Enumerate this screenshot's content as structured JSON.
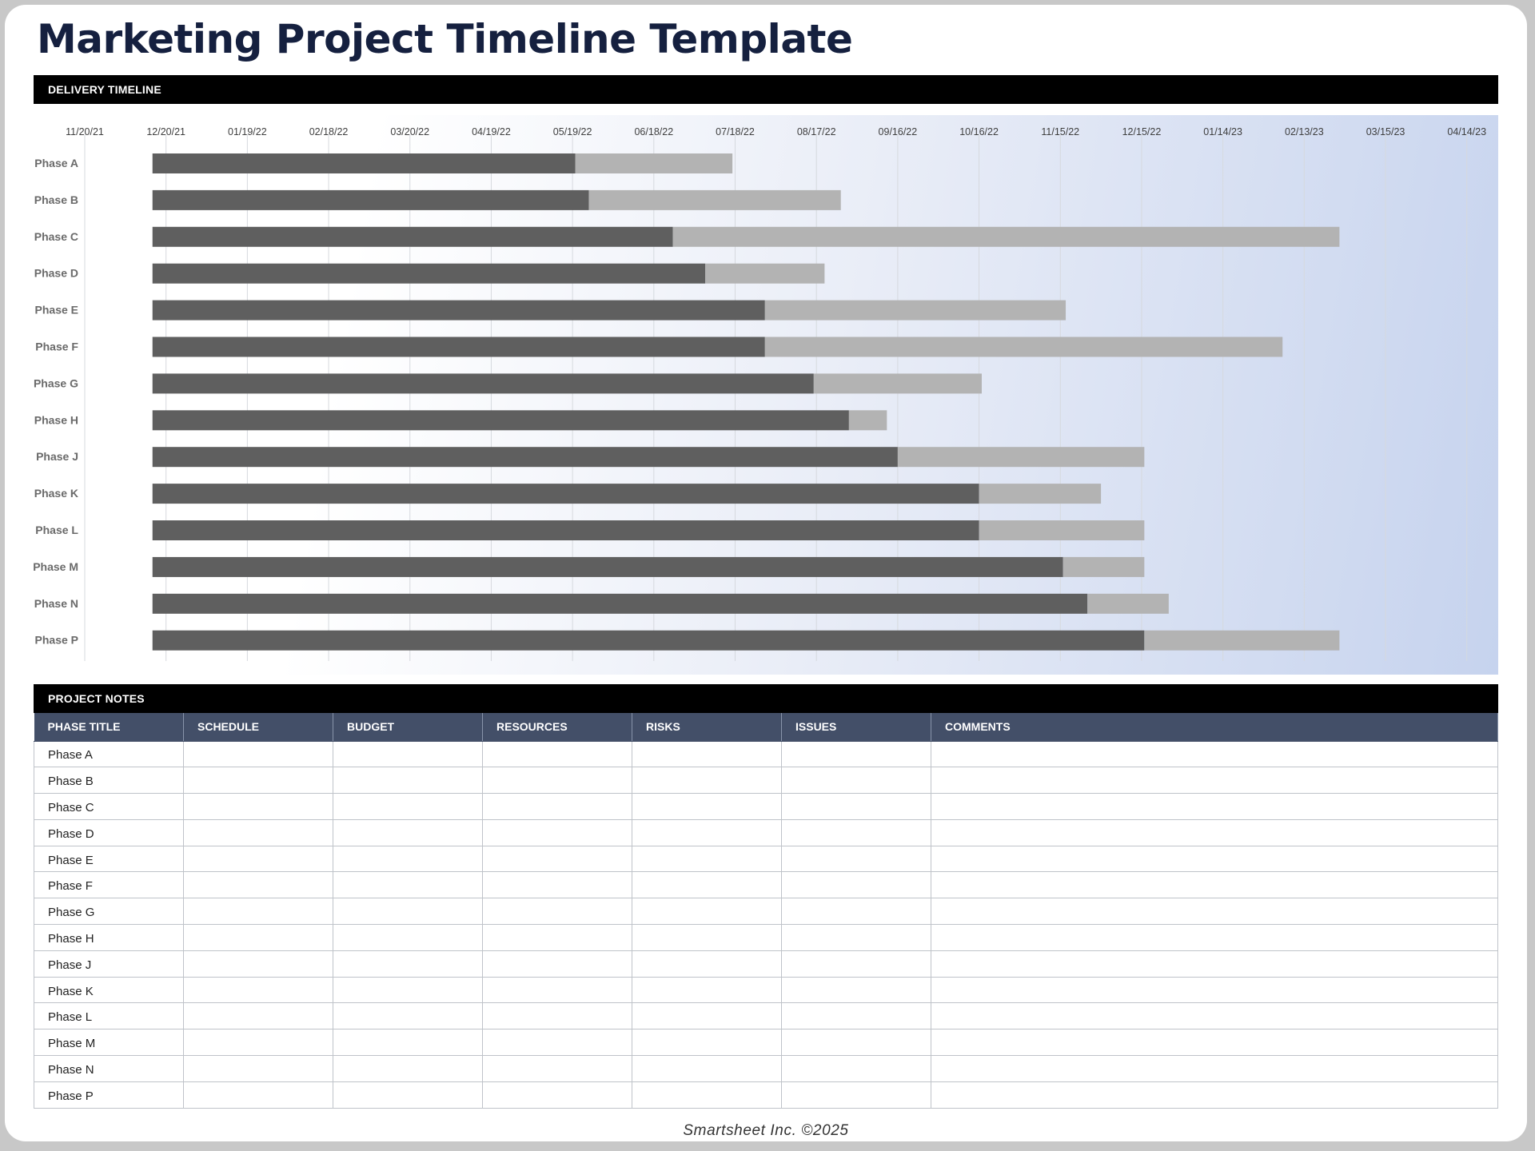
{
  "title": "Marketing Project Timeline Template",
  "timeline_section_label": "DELIVERY TIMELINE",
  "notes_section_label": "PROJECT NOTES",
  "colors": {
    "completed": "#5f5f5f",
    "remaining": "#b3b3b3",
    "section_header_bg": "#000000",
    "table_header_bg": "#434f68"
  },
  "chart_data": {
    "type": "bar",
    "orientation": "horizontal",
    "stacked": true,
    "x_ticks": [
      "11/20/21",
      "12/20/21",
      "01/19/22",
      "02/18/22",
      "03/20/22",
      "04/19/22",
      "05/19/22",
      "06/18/22",
      "07/18/22",
      "08/17/22",
      "09/16/22",
      "10/16/22",
      "11/15/22",
      "12/15/22",
      "01/14/23",
      "02/13/23",
      "03/15/23",
      "04/14/23"
    ],
    "xlim": [
      "11/20/21",
      "04/25/23"
    ],
    "grid": true,
    "legend": "none",
    "categories": [
      "Phase A",
      "Phase B",
      "Phase C",
      "Phase D",
      "Phase E",
      "Phase F",
      "Phase G",
      "Phase H",
      "Phase J",
      "Phase K",
      "Phase L",
      "Phase M",
      "Phase N",
      "Phase P"
    ],
    "series": [
      {
        "role": "offset",
        "values": [
          "12/15/21",
          "12/15/21",
          "12/15/21",
          "12/15/21",
          "12/15/21",
          "12/15/21",
          "12/15/21",
          "12/15/21",
          "12/15/21",
          "12/15/21",
          "12/15/21",
          "12/15/21",
          "12/15/21",
          "12/15/21"
        ]
      },
      {
        "role": "completed",
        "values": [
          "05/20/22",
          "05/25/22",
          "06/25/22",
          "07/07/22",
          "07/29/22",
          "07/29/22",
          "08/16/22",
          "08/29/22",
          "09/16/22",
          "10/16/22",
          "10/16/22",
          "11/16/22",
          "11/25/22",
          "12/16/22"
        ]
      },
      {
        "role": "remaining",
        "values": [
          "07/17/22",
          "08/26/22",
          "02/26/23",
          "08/20/22",
          "11/17/22",
          "02/05/23",
          "10/17/22",
          "09/12/22",
          "12/16/22",
          "11/30/22",
          "12/16/22",
          "12/16/22",
          "12/25/22",
          "02/26/23"
        ]
      }
    ]
  },
  "notes_table": {
    "columns": [
      "PHASE TITLE",
      "SCHEDULE",
      "BUDGET",
      "RESOURCES",
      "RISKS",
      "ISSUES",
      "COMMENTS"
    ],
    "rows": [
      "Phase A",
      "Phase B",
      "Phase C",
      "Phase D",
      "Phase E",
      "Phase F",
      "Phase G",
      "Phase H",
      "Phase J",
      "Phase K",
      "Phase L",
      "Phase M",
      "Phase N",
      "Phase P"
    ]
  },
  "footer": "Smartsheet Inc. ©2025"
}
